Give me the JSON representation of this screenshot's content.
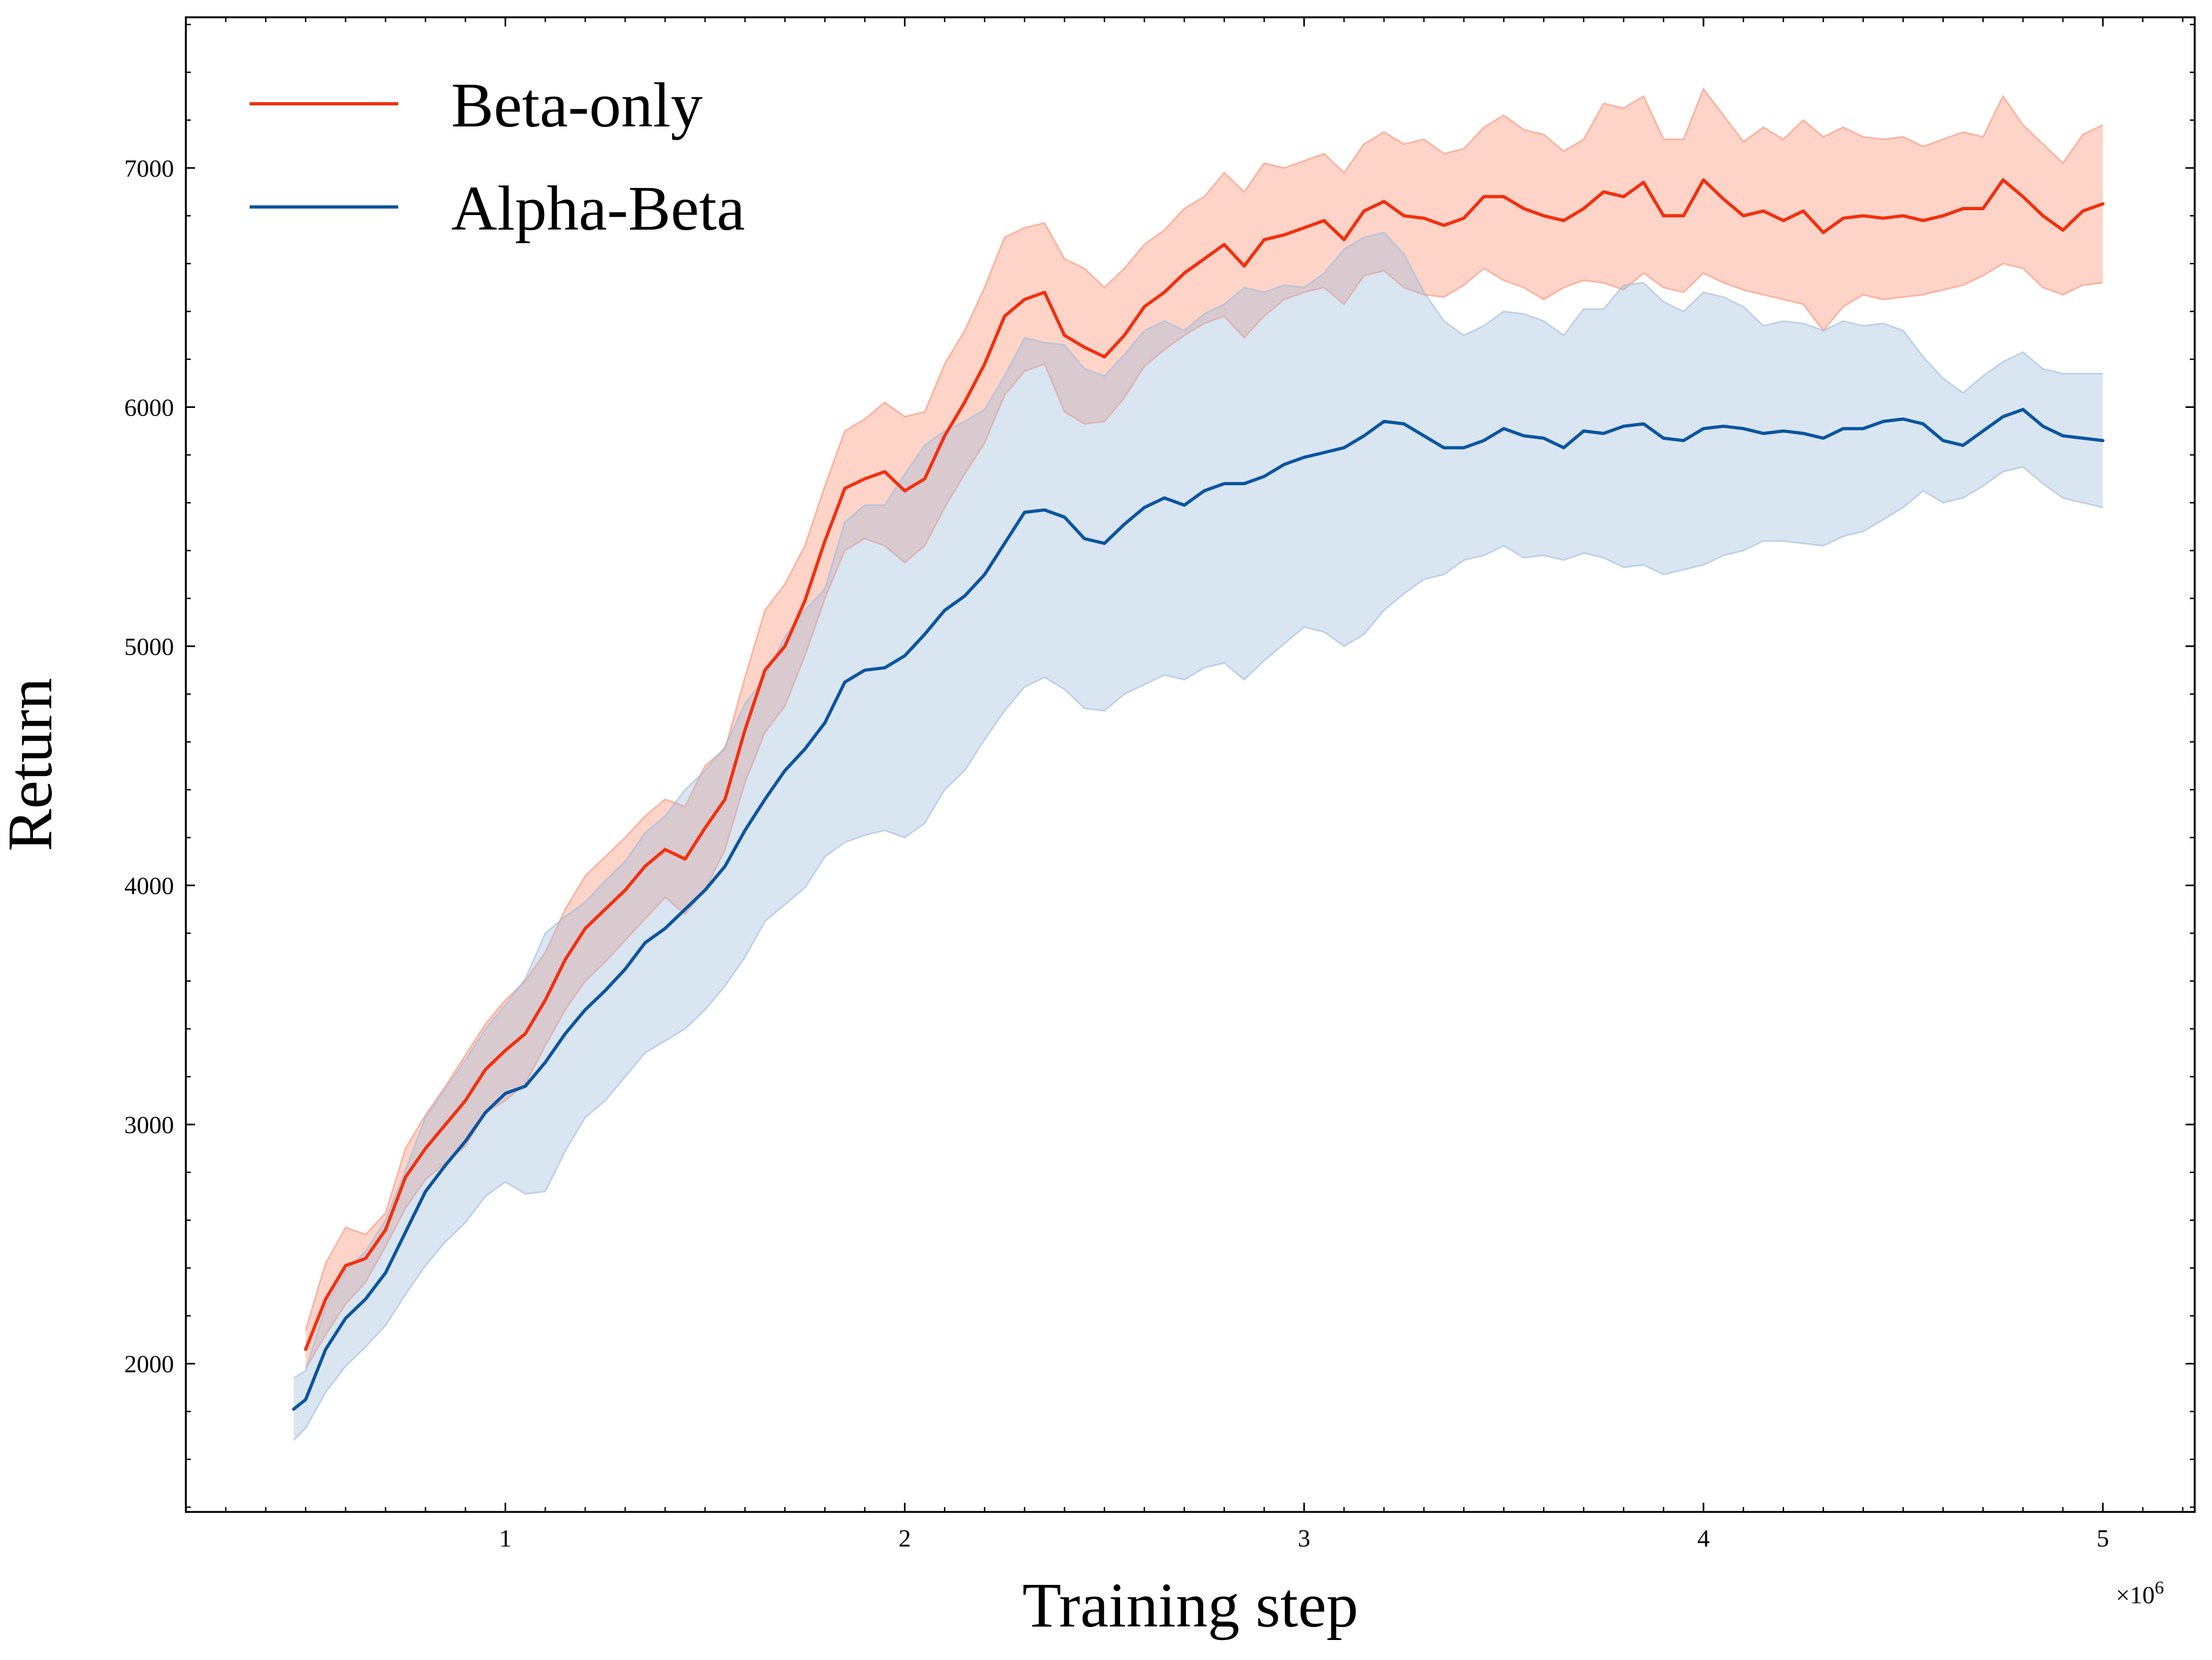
{
  "chart_data": {
    "type": "line",
    "title": "",
    "xlabel": "Training step",
    "ylabel": "Return",
    "x_multiplier": {
      "base": "×10",
      "exponent": "6"
    },
    "xlim": [
      0.2,
      5.23
    ],
    "ylim": [
      1380,
      7630
    ],
    "xticks": [
      {
        "value": 1,
        "label": "1"
      },
      {
        "value": 2,
        "label": "2"
      },
      {
        "value": 3,
        "label": "3"
      },
      {
        "value": 4,
        "label": "4"
      },
      {
        "value": 5,
        "label": "5"
      }
    ],
    "yticks": [
      {
        "value": 2000,
        "label": "2000"
      },
      {
        "value": 3000,
        "label": "3000"
      },
      {
        "value": 4000,
        "label": "4000"
      },
      {
        "value": 5000,
        "label": "5000"
      },
      {
        "value": 6000,
        "label": "6000"
      },
      {
        "value": 7000,
        "label": "7000"
      }
    ],
    "grid": false,
    "legend_position": "top-left",
    "series": [
      {
        "name": "Beta-only",
        "color": "#f2300f",
        "band_color": "#fc8d72",
        "x": [
          0.5,
          0.55,
          0.6,
          0.65,
          0.7,
          0.75,
          0.8,
          0.85,
          0.9,
          0.95,
          1.0,
          1.05,
          1.1,
          1.15,
          1.2,
          1.25,
          1.3,
          1.35,
          1.4,
          1.45,
          1.5,
          1.55,
          1.6,
          1.65,
          1.7,
          1.75,
          1.8,
          1.85,
          1.9,
          1.95,
          2.0,
          2.05,
          2.1,
          2.15,
          2.2,
          2.25,
          2.3,
          2.35,
          2.4,
          2.45,
          2.5,
          2.55,
          2.6,
          2.65,
          2.7,
          2.75,
          2.8,
          2.85,
          2.9,
          2.95,
          3.0,
          3.05,
          3.1,
          3.15,
          3.2,
          3.25,
          3.3,
          3.35,
          3.4,
          3.45,
          3.5,
          3.55,
          3.6,
          3.65,
          3.7,
          3.75,
          3.8,
          3.85,
          3.9,
          3.95,
          4.0,
          4.05,
          4.1,
          4.15,
          4.2,
          4.25,
          4.3,
          4.35,
          4.4,
          4.45,
          4.5,
          4.55,
          4.6,
          4.65,
          4.7,
          4.75,
          4.8,
          4.85,
          4.9,
          4.95,
          5.0
        ],
        "y": [
          2060,
          2270,
          2410,
          2440,
          2560,
          2780,
          2900,
          3000,
          3100,
          3230,
          3310,
          3380,
          3520,
          3690,
          3820,
          3900,
          3980,
          4080,
          4150,
          4110,
          4240,
          4360,
          4650,
          4900,
          5000,
          5190,
          5440,
          5660,
          5700,
          5730,
          5650,
          5700,
          5880,
          6020,
          6180,
          6380,
          6450,
          6480,
          6300,
          6250,
          6210,
          6300,
          6420,
          6480,
          6560,
          6620,
          6680,
          6590,
          6700,
          6720,
          6750,
          6780,
          6700,
          6820,
          6860,
          6800,
          6790,
          6760,
          6790,
          6880,
          6880,
          6830,
          6800,
          6780,
          6830,
          6900,
          6880,
          6940,
          6800,
          6800,
          6950,
          6870,
          6800,
          6820,
          6780,
          6820,
          6730,
          6790,
          6800,
          6790,
          6800,
          6780,
          6800,
          6830,
          6830,
          6950,
          6880,
          6800,
          6740,
          6820,
          6850
        ],
        "lower": [
          1980,
          2120,
          2250,
          2340,
          2490,
          2650,
          2770,
          2840,
          2910,
          3050,
          3100,
          3170,
          3330,
          3480,
          3600,
          3680,
          3770,
          3860,
          3950,
          3880,
          3980,
          4150,
          4430,
          4640,
          4750,
          4960,
          5200,
          5400,
          5450,
          5420,
          5350,
          5420,
          5580,
          5720,
          5850,
          6050,
          6150,
          6180,
          5980,
          5930,
          5940,
          6040,
          6170,
          6240,
          6300,
          6350,
          6380,
          6290,
          6380,
          6450,
          6480,
          6500,
          6430,
          6550,
          6570,
          6500,
          6470,
          6460,
          6510,
          6580,
          6530,
          6500,
          6450,
          6500,
          6530,
          6520,
          6490,
          6560,
          6500,
          6480,
          6560,
          6520,
          6490,
          6470,
          6450,
          6430,
          6320,
          6420,
          6470,
          6450,
          6460,
          6470,
          6490,
          6510,
          6550,
          6600,
          6580,
          6500,
          6470,
          6510,
          6520
        ],
        "upper": [
          2140,
          2420,
          2570,
          2540,
          2630,
          2900,
          3040,
          3160,
          3290,
          3420,
          3520,
          3600,
          3720,
          3900,
          4040,
          4120,
          4200,
          4290,
          4360,
          4330,
          4500,
          4570,
          4870,
          5150,
          5260,
          5420,
          5670,
          5900,
          5950,
          6020,
          5960,
          5980,
          6180,
          6320,
          6500,
          6710,
          6750,
          6770,
          6620,
          6580,
          6500,
          6580,
          6680,
          6740,
          6830,
          6880,
          6980,
          6900,
          7020,
          7000,
          7030,
          7060,
          6980,
          7100,
          7150,
          7100,
          7120,
          7060,
          7080,
          7170,
          7220,
          7160,
          7140,
          7070,
          7120,
          7270,
          7250,
          7300,
          7120,
          7120,
          7330,
          7220,
          7110,
          7170,
          7120,
          7200,
          7130,
          7170,
          7130,
          7120,
          7130,
          7090,
          7120,
          7150,
          7130,
          7300,
          7180,
          7100,
          7020,
          7140,
          7180
        ]
      },
      {
        "name": "Alpha-Beta",
        "color": "#0b559f",
        "band_color": "#9ebbde",
        "x": [
          0.47,
          0.5,
          0.55,
          0.6,
          0.65,
          0.7,
          0.75,
          0.8,
          0.85,
          0.9,
          0.95,
          1.0,
          1.05,
          1.1,
          1.15,
          1.2,
          1.25,
          1.3,
          1.35,
          1.4,
          1.45,
          1.5,
          1.55,
          1.6,
          1.65,
          1.7,
          1.75,
          1.8,
          1.85,
          1.9,
          1.95,
          2.0,
          2.05,
          2.1,
          2.15,
          2.2,
          2.25,
          2.3,
          2.35,
          2.4,
          2.45,
          2.5,
          2.55,
          2.6,
          2.65,
          2.7,
          2.75,
          2.8,
          2.85,
          2.9,
          2.95,
          3.0,
          3.05,
          3.1,
          3.15,
          3.2,
          3.25,
          3.3,
          3.35,
          3.4,
          3.45,
          3.5,
          3.55,
          3.6,
          3.65,
          3.7,
          3.75,
          3.8,
          3.85,
          3.9,
          3.95,
          4.0,
          4.05,
          4.1,
          4.15,
          4.2,
          4.25,
          4.3,
          4.35,
          4.4,
          4.45,
          4.5,
          4.55,
          4.6,
          4.65,
          4.7,
          4.75,
          4.8,
          4.85,
          4.9,
          4.95,
          5.0
        ],
        "y": [
          1810,
          1850,
          2060,
          2190,
          2270,
          2380,
          2550,
          2720,
          2830,
          2930,
          3050,
          3130,
          3160,
          3260,
          3380,
          3480,
          3560,
          3650,
          3760,
          3820,
          3900,
          3980,
          4080,
          4230,
          4360,
          4480,
          4570,
          4680,
          4850,
          4900,
          4910,
          4960,
          5050,
          5150,
          5210,
          5300,
          5430,
          5560,
          5570,
          5540,
          5450,
          5430,
          5510,
          5580,
          5620,
          5590,
          5650,
          5680,
          5680,
          5710,
          5760,
          5790,
          5810,
          5830,
          5880,
          5940,
          5930,
          5880,
          5830,
          5830,
          5860,
          5910,
          5880,
          5870,
          5830,
          5900,
          5890,
          5920,
          5930,
          5870,
          5860,
          5910,
          5920,
          5910,
          5890,
          5900,
          5890,
          5870,
          5910,
          5910,
          5940,
          5950,
          5930,
          5860,
          5840,
          5900,
          5960,
          5990,
          5920,
          5880,
          5870,
          5860
        ],
        "lower": [
          1680,
          1730,
          1880,
          1990,
          2070,
          2160,
          2290,
          2410,
          2510,
          2590,
          2700,
          2760,
          2710,
          2720,
          2890,
          3030,
          3100,
          3200,
          3300,
          3350,
          3400,
          3480,
          3580,
          3700,
          3850,
          3920,
          3990,
          4120,
          4180,
          4210,
          4230,
          4200,
          4260,
          4400,
          4480,
          4610,
          4730,
          4830,
          4870,
          4820,
          4740,
          4730,
          4800,
          4840,
          4880,
          4860,
          4910,
          4930,
          4860,
          4940,
          5010,
          5080,
          5060,
          5000,
          5050,
          5150,
          5220,
          5280,
          5300,
          5360,
          5380,
          5420,
          5370,
          5380,
          5360,
          5390,
          5370,
          5330,
          5340,
          5300,
          5320,
          5340,
          5380,
          5400,
          5440,
          5440,
          5430,
          5420,
          5460,
          5480,
          5530,
          5580,
          5650,
          5600,
          5620,
          5670,
          5730,
          5750,
          5680,
          5620,
          5600,
          5580
        ],
        "upper": [
          1940,
          1970,
          2240,
          2390,
          2470,
          2600,
          2810,
          3030,
          3150,
          3270,
          3400,
          3500,
          3610,
          3800,
          3870,
          3930,
          4020,
          4100,
          4220,
          4290,
          4400,
          4480,
          4580,
          4760,
          4870,
          5040,
          5150,
          5240,
          5520,
          5590,
          5590,
          5720,
          5840,
          5900,
          5940,
          5990,
          6130,
          6290,
          6270,
          6260,
          6160,
          6130,
          6220,
          6320,
          6360,
          6320,
          6390,
          6430,
          6500,
          6480,
          6510,
          6500,
          6560,
          6660,
          6710,
          6730,
          6640,
          6480,
          6360,
          6300,
          6340,
          6400,
          6390,
          6360,
          6300,
          6410,
          6410,
          6510,
          6520,
          6440,
          6400,
          6480,
          6460,
          6420,
          6340,
          6360,
          6350,
          6320,
          6360,
          6340,
          6350,
          6320,
          6210,
          6120,
          6060,
          6130,
          6190,
          6230,
          6160,
          6140,
          6140,
          6140
        ]
      }
    ]
  }
}
